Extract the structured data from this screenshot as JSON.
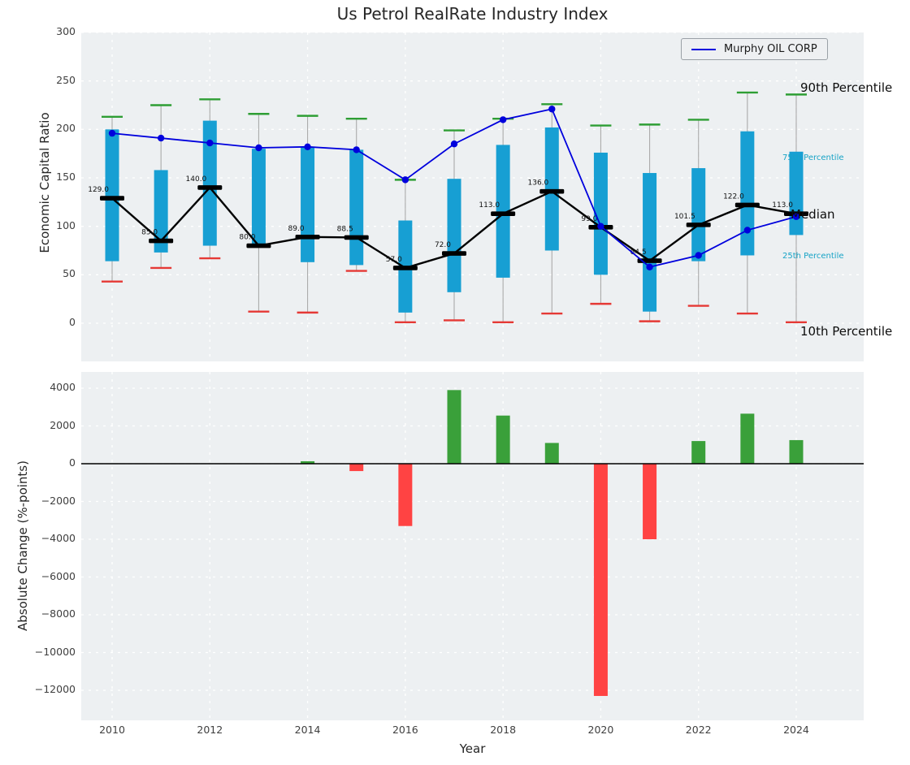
{
  "title": "Us Petrol RealRate Industry Index",
  "legend": {
    "series_label": "Murphy OIL CORP"
  },
  "axis_labels": {
    "top_y": "Economic Capital Ratio",
    "bottom_y": "Absolute Change (%-points)",
    "x": "Year"
  },
  "annotations": {
    "p90": "90th Percentile",
    "p75": "75th Percentile",
    "median": "Median",
    "p25": "25th Percentile",
    "p10": "10th Percentile"
  },
  "colors": {
    "box": "#179fd3",
    "median_marker": "#000000",
    "median_line": "#000000",
    "murphy_line": "#0000dd",
    "p90_cap": "#2e9e34",
    "p10_cap": "#e53935",
    "bar_positive": "#3aa03a",
    "bar_negative": "#ff4343",
    "panel_background": "#edf0f2",
    "grid": "#ffffff",
    "annotation_cyan": "#17a3c6",
    "whisker": "#aaaaaa",
    "tick_text": "#3f3f3f"
  },
  "xticks": [
    2010,
    2012,
    2014,
    2016,
    2018,
    2020,
    2022,
    2024
  ],
  "chart_data": [
    {
      "type": "boxplot-line-combo",
      "title": "Us Petrol RealRate Industry Index",
      "ylabel": "Economic Capital Ratio",
      "ylim": [
        0,
        300
      ],
      "yticks": [
        0,
        50,
        100,
        150,
        200,
        250,
        300
      ],
      "grid": true,
      "legend_position": "upper right",
      "years": [
        2010,
        2011,
        2012,
        2013,
        2014,
        2015,
        2016,
        2017,
        2018,
        2019,
        2020,
        2021,
        2022,
        2023,
        2024
      ],
      "series": [
        {
          "name": "90th Percentile",
          "values": [
            213,
            225,
            231,
            216,
            214,
            211,
            148,
            199,
            211,
            226,
            204,
            205,
            210,
            238,
            236
          ]
        },
        {
          "name": "75th Percentile",
          "values": [
            200,
            158,
            209,
            180,
            182,
            179,
            106,
            149,
            184,
            202,
            176,
            155,
            160,
            198,
            177
          ]
        },
        {
          "name": "Median",
          "values": [
            129,
            85,
            140,
            80,
            89,
            88.5,
            57,
            72,
            113,
            136,
            99,
            64.5,
            101.5,
            122,
            113
          ]
        },
        {
          "name": "25th Percentile",
          "values": [
            64,
            73,
            80,
            78,
            63,
            60,
            11,
            32,
            47,
            75,
            50,
            12,
            64,
            70,
            91
          ]
        },
        {
          "name": "10th Percentile",
          "values": [
            43,
            57,
            67,
            12,
            11,
            54,
            1,
            3,
            1,
            10,
            20,
            2,
            18,
            10,
            1
          ]
        },
        {
          "name": "Murphy OIL CORP",
          "values": [
            196,
            191,
            186,
            181,
            182,
            179,
            148,
            185,
            210,
            221,
            100,
            58,
            70,
            96,
            110
          ]
        }
      ],
      "median_labels": [
        "129.0",
        "85.0",
        "140.0",
        "80.0",
        "89.0",
        "88.5",
        "57.0",
        "72.0",
        "113.0",
        "136.0",
        "99.0",
        "64.5",
        "101.5",
        "122.0",
        "113.0"
      ]
    },
    {
      "type": "bar",
      "ylabel": "Absolute Change (%-points)",
      "xlabel": "Year",
      "ylim": [
        -12000,
        4000
      ],
      "yticks": [
        4000,
        2000,
        0,
        -2000,
        -4000,
        -6000,
        -8000,
        -10000,
        -12000
      ],
      "grid": true,
      "years": [
        2010,
        2011,
        2012,
        2013,
        2014,
        2015,
        2016,
        2017,
        2018,
        2019,
        2020,
        2021,
        2022,
        2023,
        2024
      ],
      "values": [
        null,
        null,
        null,
        null,
        130,
        -390,
        -3300,
        3900,
        2550,
        1100,
        -12300,
        -4000,
        1200,
        2650,
        1250
      ]
    }
  ]
}
